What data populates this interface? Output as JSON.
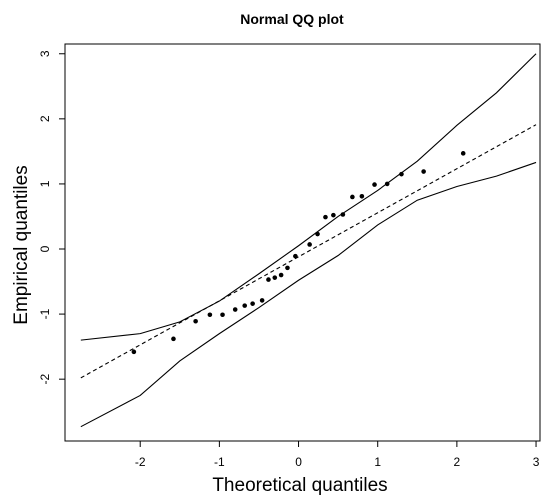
{
  "chart_data": {
    "type": "scatter",
    "title": "Normal QQ plot",
    "xlabel": "Theoretical quantiles",
    "ylabel": "Empirical quantiles",
    "xlim": [
      -2.95,
      3.05
    ],
    "ylim": [
      -2.95,
      3.15
    ],
    "xticks": [
      -2,
      -1,
      0,
      1,
      2,
      3
    ],
    "yticks": [
      -2,
      -1,
      0,
      1,
      2,
      3
    ],
    "grid": false,
    "series": [
      {
        "type": "scatter",
        "color": "#000000",
        "x": [
          -2.08,
          -1.58,
          -1.3,
          -1.12,
          -0.96,
          -0.8,
          -0.68,
          -0.58,
          -0.46,
          -0.38,
          -0.3,
          -0.22,
          -0.14,
          -0.04,
          0.14,
          0.24,
          0.34,
          0.44,
          0.56,
          0.68,
          0.8,
          0.96,
          1.12,
          1.3,
          1.58,
          2.08
        ],
        "y": [
          -1.58,
          -1.38,
          -1.11,
          -1.01,
          -1.01,
          -0.93,
          -0.87,
          -0.84,
          -0.79,
          -0.47,
          -0.44,
          -0.4,
          -0.29,
          -0.11,
          0.07,
          0.23,
          0.49,
          0.52,
          0.53,
          0.8,
          0.81,
          0.99,
          1.0,
          1.15,
          1.19,
          1.47
        ]
      },
      {
        "type": "line",
        "style": "dashed",
        "color": "#000000",
        "x": [
          -2.75,
          3.0
        ],
        "y": [
          -1.98,
          1.91
        ]
      },
      {
        "type": "line",
        "style": "solid",
        "color": "#000000",
        "x": [
          -2.75,
          -2.0,
          -1.5,
          -1.0,
          -0.5,
          0.0,
          0.5,
          1.0,
          1.5,
          2.0,
          2.5,
          3.0
        ],
        "y": [
          -1.4,
          -1.3,
          -1.12,
          -0.8,
          -0.38,
          0.05,
          0.5,
          0.9,
          1.35,
          1.9,
          2.4,
          3.0
        ]
      },
      {
        "type": "line",
        "style": "solid",
        "color": "#000000",
        "x": [
          -2.75,
          -2.0,
          -1.5,
          -1.0,
          -0.5,
          0.0,
          0.5,
          1.0,
          1.5,
          2.0,
          2.5,
          3.0
        ],
        "y": [
          -2.73,
          -2.25,
          -1.72,
          -1.3,
          -0.9,
          -0.48,
          -0.1,
          0.37,
          0.75,
          0.96,
          1.12,
          1.33
        ]
      }
    ]
  }
}
